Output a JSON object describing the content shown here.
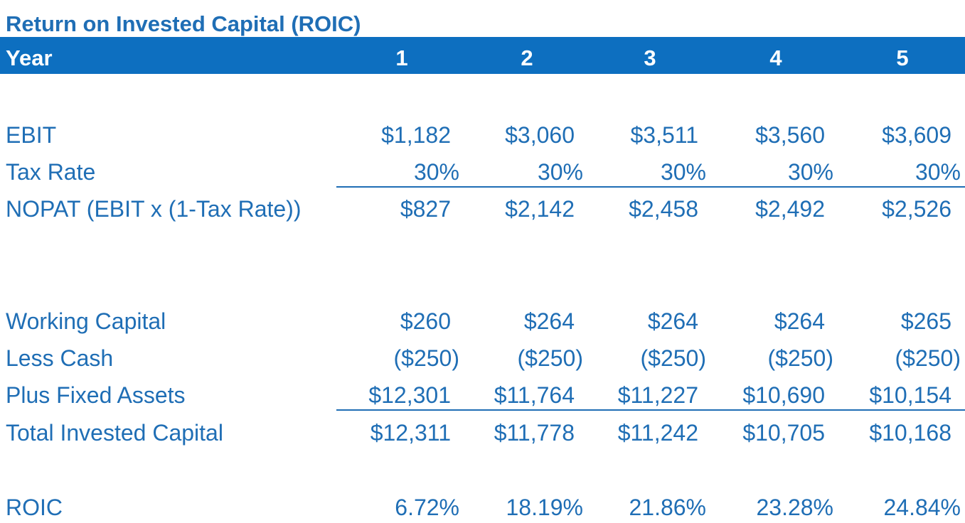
{
  "title": "Return on Invested Capital (ROIC)",
  "header": {
    "label": "Year",
    "years": [
      "1",
      "2",
      "3",
      "4",
      "5"
    ]
  },
  "rows": {
    "ebit": {
      "label": "EBIT",
      "values": [
        "$1,182",
        "$3,060",
        "$3,511",
        "$3,560",
        "$3,609"
      ]
    },
    "tax_rate": {
      "label": "Tax Rate",
      "values": [
        "30%",
        "30%",
        "30%",
        "30%",
        "30%"
      ]
    },
    "nopat": {
      "label": "NOPAT (EBIT x (1-Tax Rate))",
      "values": [
        "$827",
        "$2,142",
        "$2,458",
        "$2,492",
        "$2,526"
      ]
    },
    "working_capital": {
      "label": "Working Capital",
      "values": [
        "$260",
        "$264",
        "$264",
        "$264",
        "$265"
      ]
    },
    "less_cash": {
      "label": "Less Cash",
      "values": [
        "($250)",
        "($250)",
        "($250)",
        "($250)",
        "($250)"
      ]
    },
    "fixed_assets": {
      "label": "Plus Fixed Assets",
      "values": [
        "$12,301",
        "$11,764",
        "$11,227",
        "$10,690",
        "$10,154"
      ]
    },
    "total_invested_capital": {
      "label": "Total Invested Capital",
      "values": [
        "$12,311",
        "$11,778",
        "$11,242",
        "$10,705",
        "$10,168"
      ]
    },
    "roic": {
      "label": "ROIC",
      "values": [
        "6.72%",
        "18.19%",
        "21.86%",
        "23.28%",
        "24.84%"
      ]
    }
  },
  "colors": {
    "accent": "#0d6fc0",
    "text": "#1f6eb5",
    "header_text": "#ffffff"
  }
}
